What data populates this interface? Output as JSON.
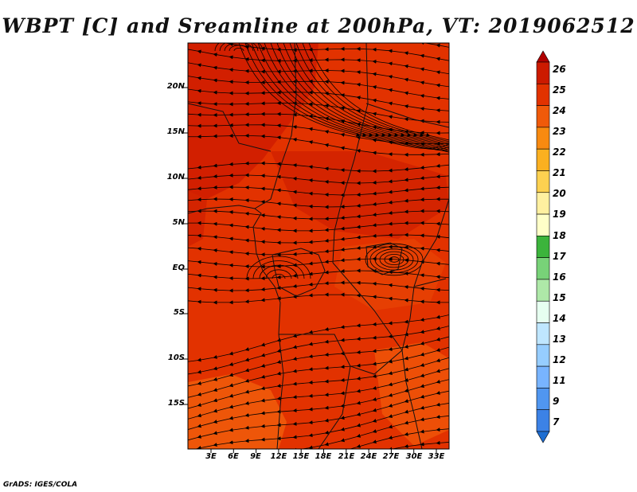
{
  "title": "WBPT [C] and Sreamline at 200hPa, VT: 2019062512",
  "credit": "GrADS: IGES/COLA",
  "axes": {
    "lat_labels": [
      "20N",
      "15N",
      "10N",
      "5N",
      "EQ",
      "5S",
      "10S",
      "15S"
    ],
    "lon_labels": [
      "3E",
      "6E",
      "9E",
      "12E",
      "15E",
      "18E",
      "21E",
      "24E",
      "27E",
      "30E",
      "33E"
    ]
  },
  "colorbar": {
    "labels": [
      "26",
      "25",
      "24",
      "23",
      "22",
      "21",
      "20",
      "19",
      "18",
      "17",
      "16",
      "15",
      "14",
      "13",
      "12",
      "11",
      "9",
      "7"
    ],
    "colors": [
      "#b00000",
      "#cc1a00",
      "#e23200",
      "#f05a0a",
      "#f88a10",
      "#fbb020",
      "#fdd150",
      "#fff0a0",
      "#ffffc8",
      "#3cb43c",
      "#78d278",
      "#aee8a8",
      "#e6fff0",
      "#bfe6ff",
      "#96cdff",
      "#78b4ff",
      "#5096f0",
      "#3c82e6",
      "#1e6ed2"
    ]
  }
}
